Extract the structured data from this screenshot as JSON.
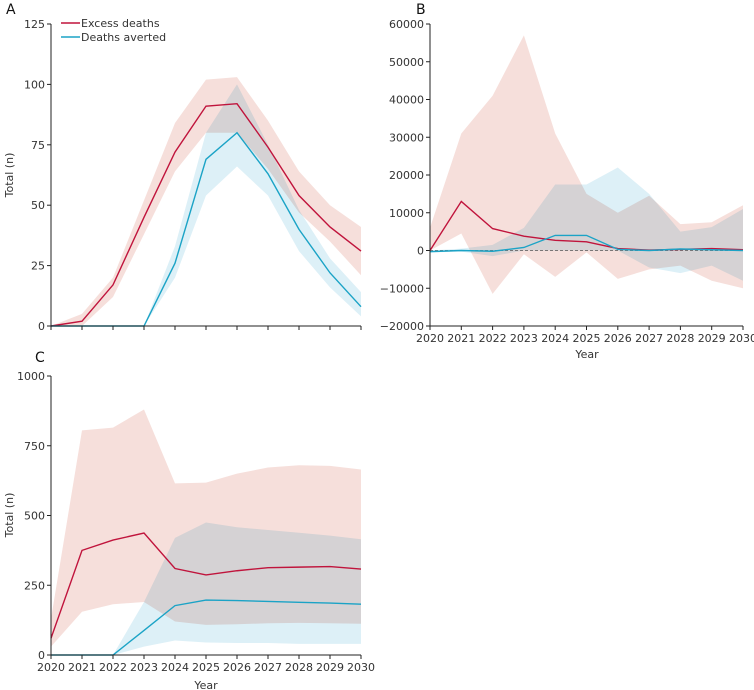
{
  "colors": {
    "excess_line": "#c0143c",
    "excess_band": "#f6dfdb",
    "averted_line": "#1ba3c6",
    "averted_band": "#ddf0f7",
    "axis": "#222222"
  },
  "legend": {
    "items": [
      {
        "label": "Excess deaths",
        "color": "#c0143c"
      },
      {
        "label": "Deaths averted",
        "color": "#1ba3c6"
      }
    ]
  },
  "chart_data": [
    {
      "type": "line",
      "panel_label": "A",
      "xlabel": "",
      "ylabel": "Total (n)",
      "x": [
        2020,
        2021,
        2022,
        2023,
        2024,
        2025,
        2026,
        2027,
        2028,
        2029,
        2030
      ],
      "x_tick_labels_shown": false,
      "ylim": [
        0,
        125
      ],
      "yticks": [
        0,
        25,
        50,
        75,
        100,
        125
      ],
      "ytick_labels": [
        "0",
        "25",
        "50",
        "75",
        "100",
        "125"
      ],
      "legend": "top-left",
      "zero_line_dashed": false,
      "series": [
        {
          "name": "Excess deaths",
          "values": [
            0,
            2,
            17,
            45,
            72,
            91,
            92,
            74,
            54,
            41,
            31
          ],
          "lower": [
            0,
            0,
            12,
            38,
            64,
            80,
            80,
            65,
            47,
            35,
            21
          ],
          "upper": [
            0,
            5,
            20,
            52,
            84,
            102,
            103,
            85,
            64,
            50,
            41
          ]
        },
        {
          "name": "Deaths averted",
          "values": [
            0,
            0,
            0,
            0,
            26,
            69,
            80,
            63,
            40,
            22,
            8
          ],
          "lower": [
            0,
            0,
            0,
            0,
            20,
            54,
            66,
            54,
            31,
            16,
            4
          ],
          "upper": [
            0,
            0,
            0,
            0,
            33,
            80,
            100,
            75,
            48,
            28,
            14
          ]
        }
      ]
    },
    {
      "type": "line",
      "panel_label": "B",
      "xlabel": "Year",
      "ylabel": "",
      "x": [
        2020,
        2021,
        2022,
        2023,
        2024,
        2025,
        2026,
        2027,
        2028,
        2029,
        2030
      ],
      "x_tick_labels_shown": true,
      "xtick_labels": [
        "2020",
        "2021",
        "2022",
        "2023",
        "2024",
        "2025",
        "2026",
        "2027",
        "2028",
        "2029",
        "2030"
      ],
      "ylim": [
        -20000,
        60000
      ],
      "yticks": [
        -20000,
        -10000,
        0,
        10000,
        20000,
        30000,
        40000,
        50000,
        60000
      ],
      "ytick_labels": [
        "−20000",
        "−10000",
        "0",
        "10000",
        "20000",
        "30000",
        "40000",
        "50000",
        "60000"
      ],
      "zero_line_dashed": true,
      "series": [
        {
          "name": "Excess deaths",
          "values": [
            0,
            13000,
            5800,
            3800,
            2700,
            2300,
            500,
            100,
            300,
            500,
            200
          ],
          "lower": [
            0,
            4500,
            -11500,
            -1000,
            -7000,
            -500,
            -7500,
            -5000,
            -4000,
            -8000,
            -10000
          ],
          "upper": [
            6000,
            31000,
            41000,
            57000,
            31000,
            15000,
            10000,
            14500,
            7000,
            7500,
            12000
          ]
        },
        {
          "name": "Deaths averted",
          "values": [
            -300,
            0,
            -200,
            800,
            4000,
            4000,
            300,
            0,
            400,
            200,
            0
          ],
          "lower": [
            -500,
            -300,
            -1500,
            0,
            0,
            0,
            0,
            -4500,
            -6000,
            -4000,
            -8000
          ],
          "upper": [
            0,
            500,
            1500,
            6000,
            17500,
            17500,
            22000,
            15000,
            5000,
            6200,
            11000
          ]
        }
      ]
    },
    {
      "type": "line",
      "panel_label": "C",
      "xlabel": "Year",
      "ylabel": "Total (n)",
      "x": [
        2020,
        2021,
        2022,
        2023,
        2024,
        2025,
        2026,
        2027,
        2028,
        2029,
        2030
      ],
      "x_tick_labels_shown": true,
      "xtick_labels": [
        "2020",
        "2021",
        "2022",
        "2023",
        "2024",
        "2025",
        "2026",
        "2027",
        "2028",
        "2029",
        "2030"
      ],
      "ylim": [
        0,
        1000
      ],
      "yticks": [
        0,
        250,
        500,
        750,
        1000
      ],
      "ytick_labels": [
        "0",
        "250",
        "500",
        "750",
        "1000"
      ],
      "zero_line_dashed": false,
      "series": [
        {
          "name": "Excess deaths",
          "values": [
            60,
            375,
            412,
            437,
            310,
            287,
            302,
            313,
            315,
            317,
            308
          ],
          "lower": [
            30,
            155,
            182,
            190,
            120,
            108,
            110,
            114,
            115,
            114,
            112
          ],
          "upper": [
            130,
            805,
            815,
            880,
            615,
            618,
            650,
            672,
            680,
            678,
            665
          ]
        },
        {
          "name": "Deaths averted",
          "values": [
            0,
            0,
            0,
            88,
            177,
            197,
            195,
            192,
            189,
            186,
            182
          ],
          "lower": [
            0,
            0,
            0,
            30,
            52,
            45,
            43,
            43,
            40,
            40,
            40
          ],
          "upper": [
            0,
            0,
            0,
            190,
            420,
            475,
            458,
            448,
            438,
            428,
            415
          ]
        }
      ]
    }
  ]
}
